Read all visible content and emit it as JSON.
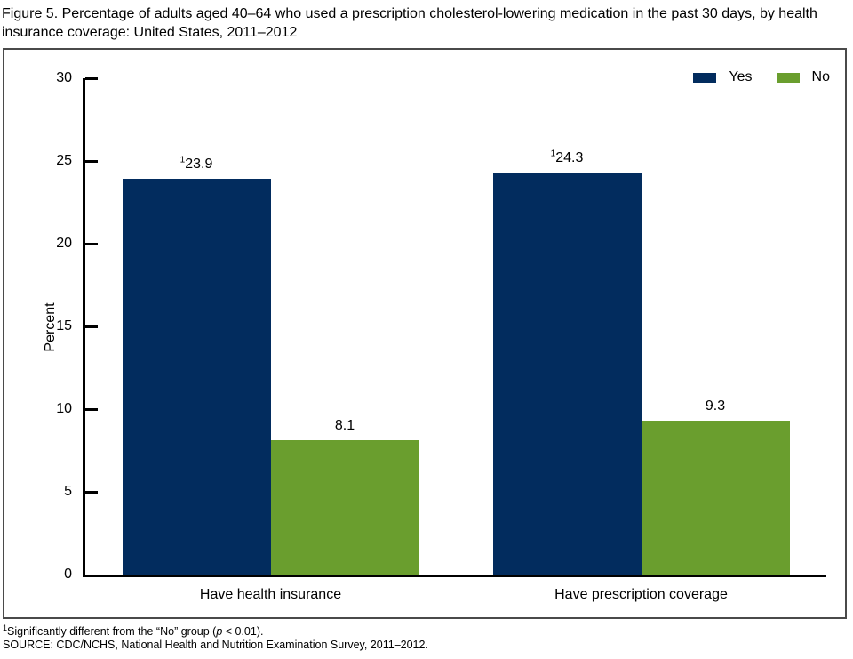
{
  "title": "Figure 5. Percentage of adults aged 40–64 who used a prescription cholesterol-lowering medication in the past 30 days, by health insurance coverage: United States, 2011–2012",
  "chart_data": {
    "type": "bar",
    "categories": [
      "Have health insurance",
      "Have prescription coverage"
    ],
    "series": [
      {
        "name": "Yes",
        "color": "#022c5e",
        "values": [
          23.9,
          24.3
        ],
        "sig_superscript": "1"
      },
      {
        "name": "No",
        "color": "#6a9e2e",
        "values": [
          8.1,
          9.3
        ],
        "sig_superscript": ""
      }
    ],
    "ylabel": "Percent",
    "ylim": [
      0,
      30
    ],
    "yticks": [
      0,
      5,
      10,
      15,
      20,
      25,
      30
    ],
    "legend_position": "top-right",
    "grid": false,
    "value_label_format": "one-decimal"
  },
  "footnotes": {
    "note1": {
      "sup": "1",
      "pre": "Significantly different from the “No” group (",
      "italic": "p",
      "post": " < 0.01)."
    },
    "source": "SOURCE: CDC/NCHS, National Health and Nutrition Examination Survey, 2011–2012."
  }
}
